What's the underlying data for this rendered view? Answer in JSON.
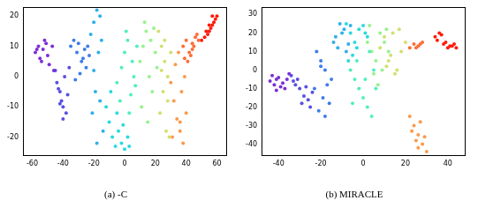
{
  "chart_data": [
    {
      "type": "scatter",
      "title": "(a) -C",
      "marker": "circle",
      "grid": false,
      "xlim": [
        -66,
        66
      ],
      "ylim": [
        -26,
        23
      ],
      "xticks": [
        -60,
        -40,
        -20,
        0,
        20,
        40,
        60
      ],
      "yticks": [
        -20,
        -10,
        0,
        10,
        20
      ],
      "series": [
        {
          "color": "#7b2fd6",
          "x": [
            -58,
            -56,
            -55,
            -53,
            -52,
            -50,
            -49,
            -47,
            -46,
            -54,
            -57,
            -51
          ],
          "values": [
            8,
            10,
            6,
            9,
            12,
            7,
            4,
            10,
            2,
            5,
            9,
            11
          ]
        },
        {
          "color": "#5a4fe0",
          "x": [
            -44,
            -42,
            -41,
            -40,
            -38,
            -43,
            -39,
            -37,
            -45,
            -42,
            -36,
            -40
          ],
          "values": [
            -2,
            -5,
            -8,
            -10,
            -12,
            -4,
            0,
            -6,
            2,
            -9,
            3,
            -14
          ]
        },
        {
          "color": "#3f7de8",
          "x": [
            -35,
            -33,
            -31,
            -30,
            -28,
            -26,
            -25,
            -23,
            -32,
            -29,
            -27,
            -24
          ],
          "values": [
            10,
            12,
            8,
            11,
            5,
            9,
            3,
            7,
            -1,
            1,
            6,
            10
          ]
        },
        {
          "color": "#2fb0ec",
          "x": [
            -22,
            -20,
            -18,
            -16,
            -17,
            -15,
            -19,
            -21,
            -14,
            -18,
            -16,
            -20
          ],
          "values": [
            14,
            18,
            22,
            20,
            8,
            12,
            -5,
            -12,
            -18,
            -22,
            -8,
            2
          ]
        },
        {
          "color": "#2ad9e0",
          "x": [
            -12,
            -10,
            -8,
            -6,
            -4,
            -2,
            0,
            2,
            -9,
            -5,
            -1,
            3
          ],
          "values": [
            -10,
            -15,
            -20,
            -23,
            -18,
            -22,
            -24,
            -20,
            -5,
            -12,
            -16,
            -23
          ]
        },
        {
          "color": "#52eec0",
          "x": [
            -5,
            -2,
            0,
            2,
            4,
            6,
            8,
            3,
            -3,
            1,
            5,
            7
          ],
          "values": [
            -2,
            3,
            8,
            12,
            -6,
            0,
            10,
            -12,
            -8,
            15,
            5,
            -3
          ]
        },
        {
          "color": "#98f290",
          "x": [
            10,
            12,
            14,
            16,
            18,
            20,
            13,
            17,
            11,
            19,
            15,
            21
          ],
          "values": [
            5,
            10,
            15,
            0,
            -5,
            8,
            18,
            12,
            -10,
            16,
            -15,
            3
          ]
        },
        {
          "color": "#d2e070",
          "x": [
            22,
            24,
            26,
            28,
            25,
            23,
            27,
            29,
            26,
            24,
            28,
            30
          ],
          "values": [
            15,
            10,
            5,
            0,
            -5,
            -12,
            -18,
            -20,
            12,
            2,
            -8,
            8
          ]
        },
        {
          "color": "#fb9a4c",
          "x": [
            30,
            32,
            34,
            36,
            38,
            40,
            33,
            35,
            37,
            31,
            39,
            36
          ],
          "values": [
            -2,
            -8,
            -14,
            -18,
            -22,
            -12,
            4,
            8,
            -5,
            -20,
            0,
            -15
          ]
        },
        {
          "color": "#ff6c36",
          "x": [
            38,
            40,
            42,
            44,
            46,
            41,
            43,
            45,
            39,
            47,
            48,
            44
          ],
          "values": [
            10,
            12,
            8,
            11,
            13,
            5,
            7,
            10,
            6,
            14,
            12,
            9
          ]
        },
        {
          "color": "#ff1a0a",
          "x": [
            50,
            52,
            54,
            55,
            56,
            57,
            58,
            59,
            60,
            53,
            55,
            57
          ],
          "values": [
            12,
            13,
            14,
            15,
            16,
            17,
            18,
            19,
            20,
            15,
            17,
            20
          ]
        }
      ]
    },
    {
      "type": "scatter",
      "title": "(b) MIRACLE",
      "marker": "circle",
      "grid": false,
      "xlim": [
        -48,
        48
      ],
      "ylim": [
        -46,
        34
      ],
      "xticks": [
        -40,
        -20,
        0,
        20,
        40
      ],
      "yticks": [
        -40,
        -30,
        -20,
        -10,
        0,
        10,
        20,
        30
      ],
      "series": [
        {
          "color": "#7b2fd6",
          "x": [
            -44,
            -42,
            -41,
            -40,
            -39,
            -38,
            -36,
            -43,
            -37,
            -41,
            -35
          ],
          "values": [
            -6,
            -8,
            -5,
            -4,
            -9,
            -7,
            -5,
            -3,
            -10,
            -11,
            -2
          ]
        },
        {
          "color": "#5a4fe0",
          "x": [
            -34,
            -32,
            -30,
            -28,
            -26,
            -24,
            -31,
            -27,
            -29,
            -33,
            -25
          ],
          "values": [
            -3,
            -8,
            -10,
            -14,
            -16,
            -12,
            -5,
            -9,
            -18,
            -6,
            -20
          ]
        },
        {
          "color": "#3f7de8",
          "x": [
            -22,
            -20,
            -18,
            -17,
            -19,
            -21,
            -16,
            -18,
            -20,
            -15,
            -23
          ],
          "values": [
            10,
            5,
            0,
            -8,
            -15,
            -22,
            -18,
            -25,
            2,
            -5,
            -10
          ]
        },
        {
          "color": "#2fb0ec",
          "x": [
            -14,
            -12,
            -10,
            -8,
            -11,
            -9,
            -13,
            -7,
            -6
          ],
          "values": [
            15,
            12,
            20,
            10,
            25,
            22,
            18,
            14,
            24
          ]
        },
        {
          "color": "#2ad9e0",
          "x": [
            -8,
            -6,
            -4,
            -2,
            0,
            2,
            -5,
            -3,
            1,
            -7
          ],
          "values": [
            25,
            20,
            15,
            22,
            24,
            18,
            8,
            12,
            20,
            5
          ]
        },
        {
          "color": "#52eec0",
          "x": [
            -6,
            -4,
            -2,
            0,
            2,
            4,
            6,
            -3,
            1,
            5,
            -5,
            3
          ],
          "values": [
            0,
            -5,
            -10,
            -15,
            -20,
            -25,
            -10,
            5,
            -5,
            0,
            -18,
            10
          ]
        },
        {
          "color": "#98f290",
          "x": [
            2,
            4,
            6,
            8,
            10,
            12,
            5,
            9,
            7,
            11,
            3
          ],
          "values": [
            15,
            10,
            5,
            20,
            15,
            10,
            -2,
            0,
            -8,
            22,
            24
          ]
        },
        {
          "color": "#d2e070",
          "x": [
            8,
            10,
            12,
            14,
            16,
            18,
            20,
            15,
            13,
            17,
            11
          ],
          "values": [
            12,
            18,
            5,
            20,
            0,
            10,
            15,
            -2,
            8,
            22,
            2
          ]
        },
        {
          "color": "#fb9a4c",
          "x": [
            22,
            24,
            26,
            28,
            30,
            25,
            27,
            23,
            29,
            26
          ],
          "values": [
            -25,
            -30,
            -35,
            -40,
            -44,
            -38,
            -28,
            -33,
            -36,
            -42
          ]
        },
        {
          "color": "#ff6c36",
          "x": [
            22,
            24,
            26,
            28,
            25,
            27
          ],
          "values": [
            12,
            14,
            13,
            15,
            12,
            14
          ]
        },
        {
          "color": "#ff1a0a",
          "x": [
            34,
            36,
            38,
            40,
            42,
            44,
            35,
            39,
            41,
            43,
            37
          ],
          "values": [
            18,
            20,
            14,
            12,
            13,
            12,
            16,
            15,
            13,
            14,
            19
          ]
        }
      ]
    }
  ]
}
